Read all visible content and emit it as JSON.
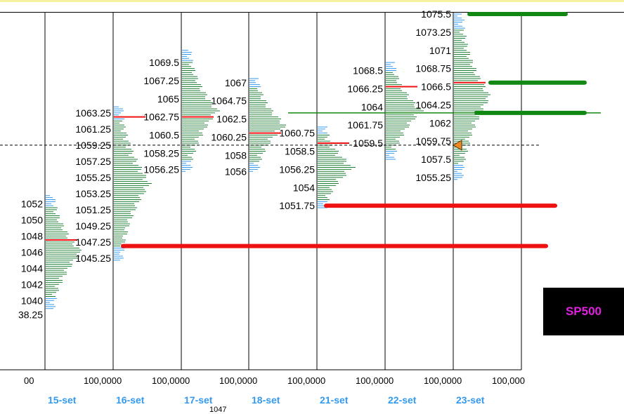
{
  "chart_data": {
    "type": "bar",
    "subtype": "market-profile",
    "symbol": "SP500",
    "x_tick_labels": [
      "00",
      "100,0000",
      "100,0000",
      "100,0000",
      "100,0000",
      "100,0000",
      "100,0000",
      "100,000"
    ],
    "days": [
      {
        "label": "15-set",
        "price_labels": [
          "1052",
          "1050",
          "1048",
          "1046",
          "1044",
          "1042",
          "1040",
          "38.25"
        ],
        "range": [
          1039,
          1053
        ],
        "poc": 1047.5,
        "profile_colors": {
          "main": "#1e7e34",
          "tail": "#3399ee"
        }
      },
      {
        "label": "16-set",
        "price_labels": [
          "1063.25",
          "1061.25",
          "1059.25",
          "1057.25",
          "1055.25",
          "1053.25",
          "1051.25",
          "1049.25",
          "1047.25",
          "1045.25"
        ],
        "range": [
          1045,
          1064
        ],
        "poc": 1062.75
      },
      {
        "label": "17-set",
        "price_labels": [
          "1069.5",
          "1067.25",
          "1065",
          "1062.75",
          "1060.5",
          "1058.25",
          "1056.25"
        ],
        "range": [
          1056,
          1071
        ],
        "poc": 1062.75
      },
      {
        "label": "18-set",
        "price_labels": [
          "1067",
          "1064.75",
          "1062.5",
          "1060.25",
          "1058",
          "1056"
        ],
        "range": [
          1056,
          1067.5
        ],
        "poc": 1060.75
      },
      {
        "label": "21-set",
        "price_labels": [
          "1060.75",
          "1058.5",
          "1056.25",
          "1054",
          "1051.75"
        ],
        "range": [
          1051.5,
          1061.5
        ],
        "poc": 1059.5
      },
      {
        "label": "22-set",
        "price_labels": [
          "1068.5",
          "1066.25",
          "1064",
          "1061.75",
          "1059.5"
        ],
        "range": [
          1057.5,
          1069.5
        ],
        "poc": 1066.5
      },
      {
        "label": "23-set",
        "price_labels": [
          "1075.5",
          "1073.25",
          "1071",
          "1068.75",
          "1066.5",
          "1064.25",
          "1062",
          "1059.75",
          "1057.5",
          "1055.25"
        ],
        "range": [
          1055,
          1075.5
        ],
        "poc": 1067
      }
    ],
    "current_price": 1059.25,
    "levels": [
      {
        "price": 1075.5,
        "color": "#118811"
      },
      {
        "price": 1067,
        "color": "#118811"
      },
      {
        "price": 1063.25,
        "color": "#118811"
      },
      {
        "price": 1051.75,
        "color": "#ee1111"
      },
      {
        "price": 1046.75,
        "color": "#ee1111"
      }
    ],
    "footer_label": "1047"
  }
}
